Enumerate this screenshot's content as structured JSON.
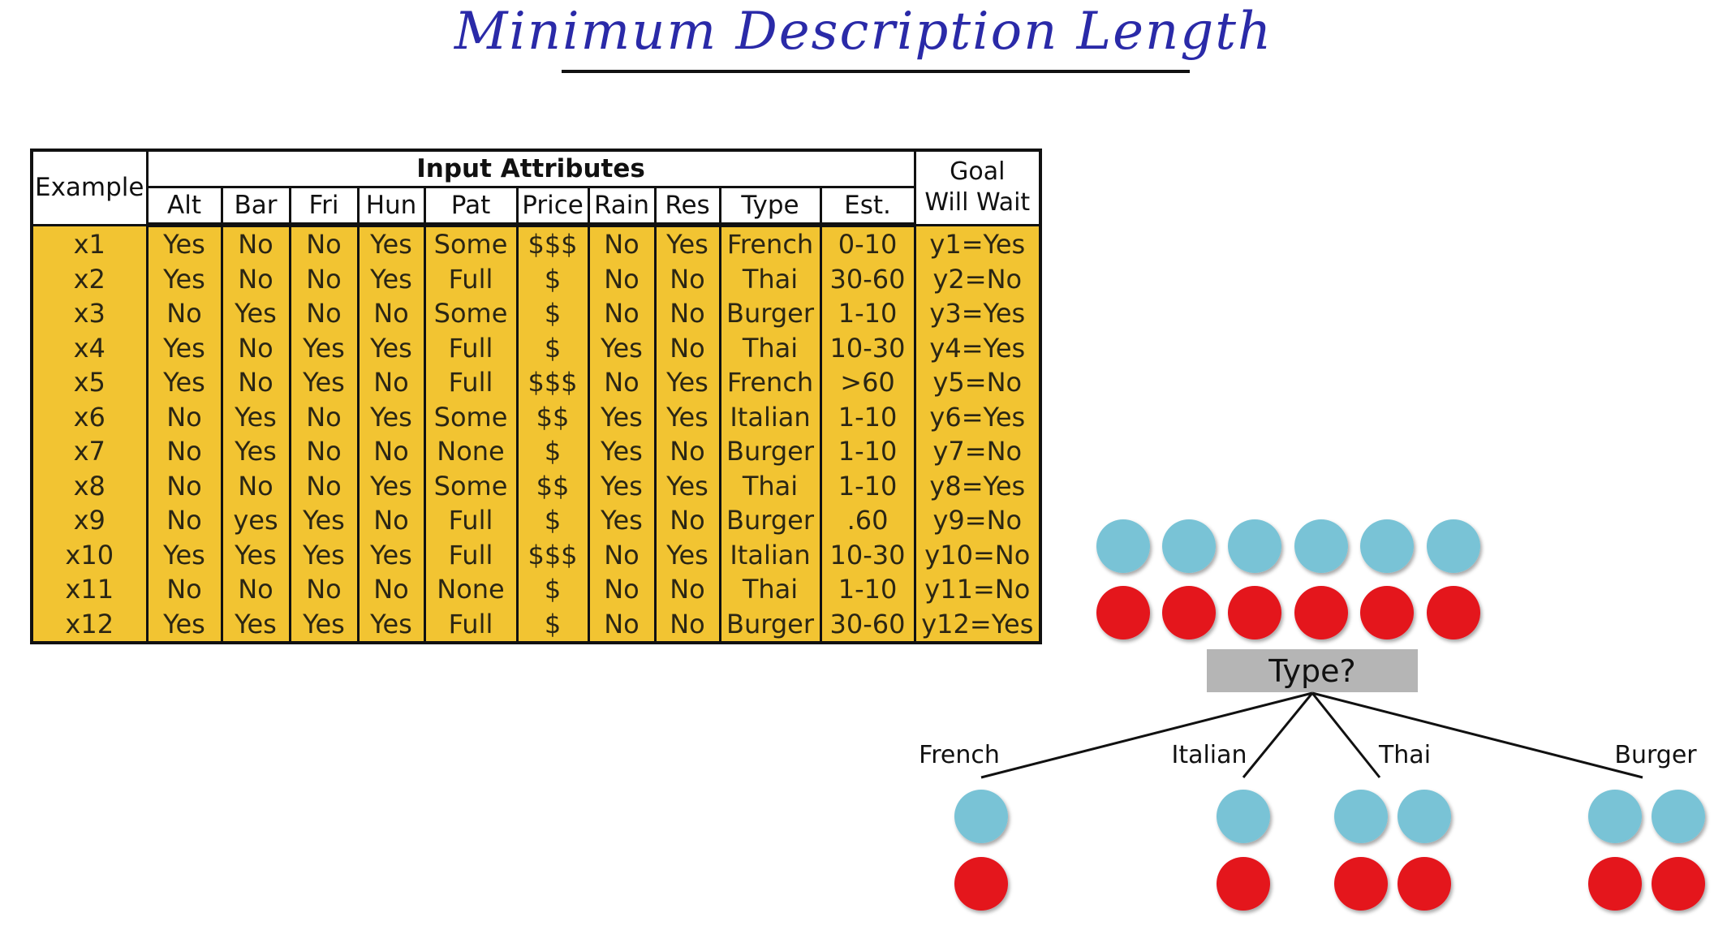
{
  "title": "Minimum Description Length",
  "table": {
    "example_header": "Example",
    "group_header": "Input Attributes",
    "goal_header_line1": "Goal",
    "goal_header_line2": "Will Wait",
    "columns": [
      "Alt",
      "Bar",
      "Fri",
      "Hun",
      "Pat",
      "Price",
      "Rain",
      "Res",
      "Type",
      "Est."
    ],
    "rows": [
      [
        "x1",
        "Yes",
        "No",
        "No",
        "Yes",
        "Some",
        "$$$",
        "No",
        "Yes",
        "French",
        "0-10",
        "y1=Yes"
      ],
      [
        "x2",
        "Yes",
        "No",
        "No",
        "Yes",
        "Full",
        "$",
        "No",
        "No",
        "Thai",
        "30-60",
        "y2=No"
      ],
      [
        "x3",
        "No",
        "Yes",
        "No",
        "No",
        "Some",
        "$",
        "No",
        "No",
        "Burger",
        "1-10",
        "y3=Yes"
      ],
      [
        "x4",
        "Yes",
        "No",
        "Yes",
        "Yes",
        "Full",
        "$",
        "Yes",
        "No",
        "Thai",
        "10-30",
        "y4=Yes"
      ],
      [
        "x5",
        "Yes",
        "No",
        "Yes",
        "No",
        "Full",
        "$$$",
        "No",
        "Yes",
        "French",
        ">60",
        "y5=No"
      ],
      [
        "x6",
        "No",
        "Yes",
        "No",
        "Yes",
        "Some",
        "$$",
        "Yes",
        "Yes",
        "Italian",
        "1-10",
        "y6=Yes"
      ],
      [
        "x7",
        "No",
        "Yes",
        "No",
        "No",
        "None",
        "$",
        "Yes",
        "No",
        "Burger",
        "1-10",
        "y7=No"
      ],
      [
        "x8",
        "No",
        "No",
        "No",
        "Yes",
        "Some",
        "$$",
        "Yes",
        "Yes",
        "Thai",
        "1-10",
        "y8=Yes"
      ],
      [
        "x9",
        "No",
        "yes",
        "Yes",
        "No",
        "Full",
        "$",
        "Yes",
        "No",
        "Burger",
        ".60",
        "y9=No"
      ],
      [
        "x10",
        "Yes",
        "Yes",
        "Yes",
        "Yes",
        "Full",
        "$$$",
        "No",
        "Yes",
        "Italian",
        "10-30",
        "y10=No"
      ],
      [
        "x11",
        "No",
        "No",
        "No",
        "No",
        "None",
        "$",
        "No",
        "No",
        "Thai",
        "1-10",
        "y11=No"
      ],
      [
        "x12",
        "Yes",
        "Yes",
        "Yes",
        "Yes",
        "Full",
        "$",
        "No",
        "No",
        "Burger",
        "30-60",
        "y12=Yes"
      ]
    ]
  },
  "tree": {
    "root_label": "Type?",
    "root_counts": {
      "blue": 6,
      "red": 6
    },
    "branches": [
      {
        "label": "French",
        "blue": 1,
        "red": 1
      },
      {
        "label": "Italian",
        "blue": 1,
        "red": 1
      },
      {
        "label": "Thai",
        "blue": 2,
        "red": 2
      },
      {
        "label": "Burger",
        "blue": 2,
        "red": 2
      }
    ],
    "colors": {
      "blue": "#79c3d6",
      "red": "#e4121e",
      "node_box": "#b5b5b5",
      "line": "#111111"
    }
  }
}
